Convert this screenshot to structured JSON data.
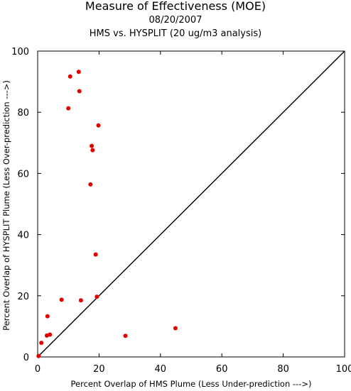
{
  "chart_data": {
    "type": "scatter",
    "title": "Measure of Effectiveness (MOE)",
    "date": "08/20/2007",
    "subtitle": "HMS vs. HYSPLIT  (20 ug/m3 analysis)",
    "xlabel": "Percent Overlap of HMS Plume (Less Under-prediction --->)",
    "ylabel": "Percent Overlap of HYSPLIT Plume (Less Over-prediction --->)",
    "xlim": [
      0,
      100
    ],
    "ylim": [
      0,
      100
    ],
    "xticks": [
      "0",
      "20",
      "40",
      "60",
      "80",
      "100"
    ],
    "yticks": [
      "0",
      "20",
      "40",
      "60",
      "80",
      "100"
    ],
    "grid": false,
    "reference_line": "y = x",
    "marker_color": "#e00000",
    "points": [
      {
        "x": 0.3,
        "y": 0.3
      },
      {
        "x": 1.2,
        "y": 4.6
      },
      {
        "x": 3.0,
        "y": 7.0
      },
      {
        "x": 3.2,
        "y": 13.3
      },
      {
        "x": 4.0,
        "y": 7.3
      },
      {
        "x": 7.8,
        "y": 18.7
      },
      {
        "x": 10.0,
        "y": 81.3
      },
      {
        "x": 10.6,
        "y": 91.7
      },
      {
        "x": 13.4,
        "y": 93.2
      },
      {
        "x": 13.6,
        "y": 86.9
      },
      {
        "x": 14.1,
        "y": 18.5
      },
      {
        "x": 17.2,
        "y": 56.4
      },
      {
        "x": 17.6,
        "y": 69.0
      },
      {
        "x": 17.9,
        "y": 67.6
      },
      {
        "x": 18.9,
        "y": 33.5
      },
      {
        "x": 19.3,
        "y": 19.7
      },
      {
        "x": 19.8,
        "y": 75.7
      },
      {
        "x": 28.6,
        "y": 6.9
      },
      {
        "x": 44.9,
        "y": 9.4
      }
    ]
  }
}
